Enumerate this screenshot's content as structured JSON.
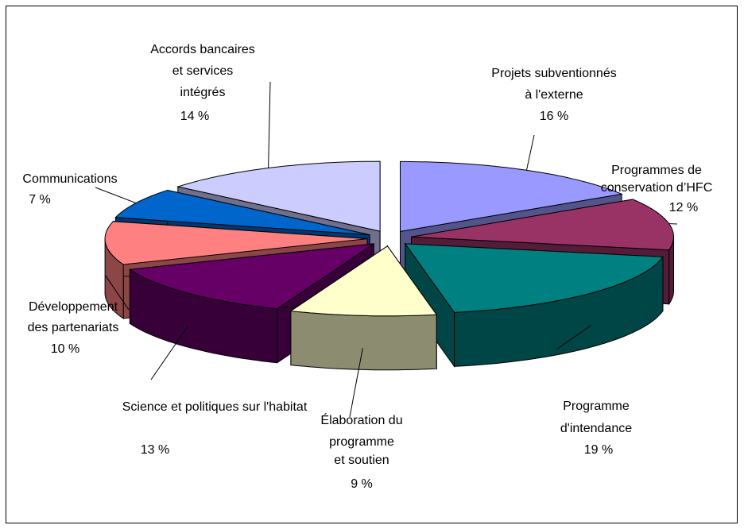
{
  "chart_data": {
    "type": "pie3d",
    "categories": [
      [
        "Projets subventionnés",
        "à l'externe"
      ],
      [
        "Programmes de",
        "conservation d’HFC"
      ],
      [
        "Programme",
        "d'intendance"
      ],
      [
        "Élaboration du",
        "programme",
        "et soutien"
      ],
      [
        "Science et politiques sur l'habitat"
      ],
      [
        "Développement",
        "des partenariats"
      ],
      [
        "Communications"
      ],
      [
        "Accords bancaires",
        "et services",
        "intégrés"
      ]
    ],
    "values": [
      16,
      12,
      19,
      9,
      13,
      10,
      7,
      14
    ],
    "value_labels": [
      "16 %",
      "12 %",
      "19 %",
      "9 %",
      "13 %",
      "10 %",
      "7 %",
      "14 %"
    ],
    "colors": [
      "#9999ff",
      "#993366",
      "#008080",
      "#ffffcc",
      "#660066",
      "#ff8080",
      "#0066cc",
      "#ccccff"
    ]
  }
}
